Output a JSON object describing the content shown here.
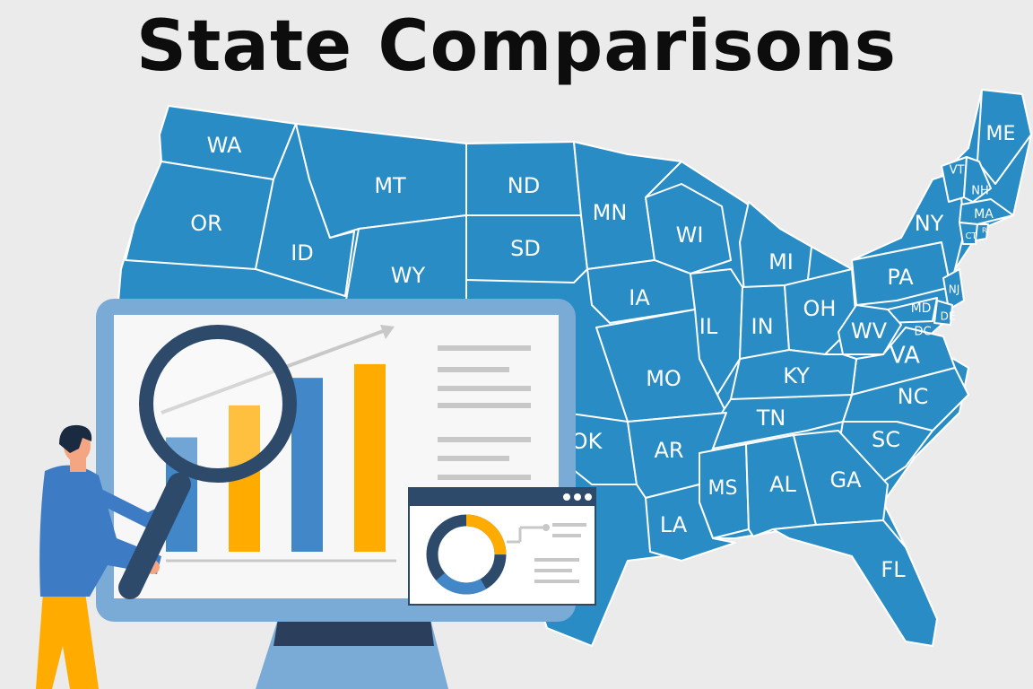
{
  "title": "State Comparisons",
  "colors": {
    "background": "#ebebeb",
    "map_fill": "#2a8cc4",
    "border": "#ffffff",
    "monitor": "#7aaad6",
    "bar_blue": "#4287c7",
    "bar_orange": "#ffab00",
    "dark_navy": "#2e4a6b"
  },
  "states": [
    {
      "code": "WA",
      "label": "WA"
    },
    {
      "code": "OR",
      "label": "OR"
    },
    {
      "code": "ID",
      "label": "ID"
    },
    {
      "code": "MT",
      "label": "MT"
    },
    {
      "code": "WY",
      "label": "WY"
    },
    {
      "code": "ND",
      "label": "ND"
    },
    {
      "code": "SD",
      "label": "SD"
    },
    {
      "code": "MN",
      "label": "MN"
    },
    {
      "code": "WI",
      "label": "WI"
    },
    {
      "code": "MI",
      "label": "MI"
    },
    {
      "code": "IA",
      "label": "IA"
    },
    {
      "code": "IL",
      "label": "IL"
    },
    {
      "code": "IN",
      "label": "IN"
    },
    {
      "code": "OH",
      "label": "OH"
    },
    {
      "code": "PA",
      "label": "PA"
    },
    {
      "code": "NY",
      "label": "NY"
    },
    {
      "code": "ME",
      "label": "ME"
    },
    {
      "code": "VT",
      "label": "VT"
    },
    {
      "code": "NH",
      "label": "NH"
    },
    {
      "code": "MA",
      "label": "MA"
    },
    {
      "code": "CT",
      "label": "CT"
    },
    {
      "code": "RI",
      "label": "RI"
    },
    {
      "code": "NJ",
      "label": "NJ"
    },
    {
      "code": "MD",
      "label": "MD"
    },
    {
      "code": "DE",
      "label": "DE"
    },
    {
      "code": "DC",
      "label": "DC"
    },
    {
      "code": "WV",
      "label": "WV"
    },
    {
      "code": "VA",
      "label": "VA"
    },
    {
      "code": "KY",
      "label": "KY"
    },
    {
      "code": "MO",
      "label": "MO"
    },
    {
      "code": "NC",
      "label": "NC"
    },
    {
      "code": "TN",
      "label": "TN"
    },
    {
      "code": "SC",
      "label": "SC"
    },
    {
      "code": "OK",
      "label": "OK"
    },
    {
      "code": "AR",
      "label": "AR"
    },
    {
      "code": "MS",
      "label": "MS"
    },
    {
      "code": "AL",
      "label": "AL"
    },
    {
      "code": "GA",
      "label": "GA"
    },
    {
      "code": "LA",
      "label": "LA"
    },
    {
      "code": "FL",
      "label": "FL"
    }
  ],
  "illustration": {
    "chart_bars": [
      {
        "color": "blue",
        "value": 0.5
      },
      {
        "color": "orange",
        "value": 0.64
      },
      {
        "color": "blue",
        "value": 0.76
      },
      {
        "color": "orange",
        "value": 0.82
      }
    ],
    "donut_fill": 0.25
  }
}
